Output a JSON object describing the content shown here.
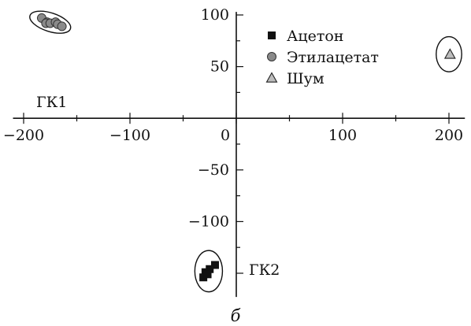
{
  "chart_data": {
    "type": "scatter",
    "title": "",
    "xlabel": "ГК1",
    "ylabel": "ГК2",
    "caption": "б",
    "xlim": [
      -210,
      215
    ],
    "ylim": [
      -173,
      103
    ],
    "x_ticks": [
      {
        "value": -200,
        "label": "−200"
      },
      {
        "value": -100,
        "label": "−100"
      },
      {
        "value": 0,
        "label": "0"
      },
      {
        "value": 100,
        "label": "100"
      },
      {
        "value": 200,
        "label": "200"
      }
    ],
    "y_ticks": [
      {
        "value": 100,
        "label": "100"
      },
      {
        "value": 50,
        "label": "50"
      },
      {
        "value": -50,
        "label": "−50"
      },
      {
        "value": -100,
        "label": "−100"
      }
    ],
    "grid": false,
    "legend_position": "top-center",
    "series": [
      {
        "name": "Ацетон",
        "marker": "square",
        "color": "#111111",
        "points": [
          [
            -20,
            -142
          ],
          [
            -25,
            -146
          ],
          [
            -29,
            -149
          ],
          [
            -31,
            -154
          ],
          [
            -27,
            -151
          ]
        ]
      },
      {
        "name": "Этилацетат",
        "marker": "circle",
        "color": "#8a8a8a",
        "points": [
          [
            -183,
            97
          ],
          [
            -178,
            93
          ],
          [
            -179,
            92
          ],
          [
            -175,
            92
          ],
          [
            -170,
            93
          ],
          [
            -168,
            91
          ],
          [
            -164,
            89
          ]
        ]
      },
      {
        "name": "Шум",
        "marker": "triangle",
        "color": "#bdbdbd",
        "points": [
          [
            201,
            62
          ]
        ]
      }
    ],
    "cluster_ellipses": [
      {
        "series": "Этилацетат",
        "center": [
          -175,
          93
        ],
        "radius": [
          20,
          9
        ],
        "rotation_deg": 18
      },
      {
        "series": "Ацетон",
        "center": [
          -26,
          -148
        ],
        "radius": [
          13,
          20
        ],
        "rotation_deg": 0
      },
      {
        "series": "Шум",
        "center": [
          200,
          62
        ],
        "radius": [
          12,
          17
        ],
        "rotation_deg": 0
      }
    ]
  }
}
